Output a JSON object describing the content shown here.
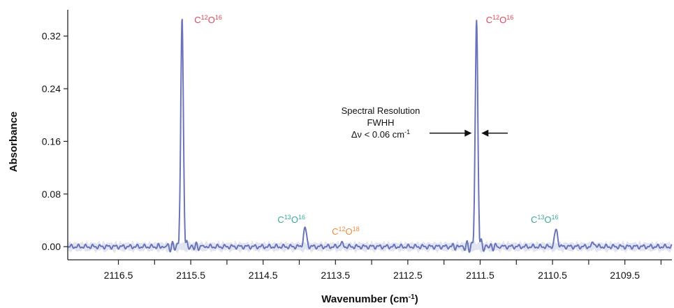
{
  "chart_data": {
    "type": "line",
    "title": "",
    "xlabel": "Wavenumber (cm",
    "xlabel_sup": "-1",
    "xlabel_close": ")",
    "ylabel": "Absorbance",
    "x_reversed": true,
    "xlim": [
      2117.2,
      2108.85
    ],
    "ylim": [
      -0.02,
      0.36
    ],
    "x_ticks": [
      2116.5,
      2115.5,
      2114.5,
      2113.5,
      2112.5,
      2111.5,
      2110.5,
      2109.5
    ],
    "x_tick_labels": [
      "2116.5",
      "2115.5",
      "2114.5",
      "2113.5",
      "2112.5",
      "2111.5",
      "2110.5",
      "2109.5"
    ],
    "y_ticks": [
      0.0,
      0.08,
      0.16,
      0.24,
      0.32
    ],
    "y_tick_labels": [
      "0.00",
      "0.08",
      "0.16",
      "0.24",
      "0.32"
    ],
    "grid": false,
    "line_color": "#6a74b8",
    "baseline": 0.0,
    "peaks": [
      {
        "x": 2115.62,
        "y": 0.345,
        "width": 0.025
      },
      {
        "x": 2113.92,
        "y": 0.028,
        "width": 0.03
      },
      {
        "x": 2113.42,
        "y": 0.005,
        "width": 0.03
      },
      {
        "x": 2111.55,
        "y": 0.345,
        "width": 0.025
      },
      {
        "x": 2110.45,
        "y": 0.026,
        "width": 0.03
      },
      {
        "x": 2109.93,
        "y": 0.006,
        "width": 0.03
      }
    ],
    "annotations": [
      {
        "base": "C",
        "m1": "12",
        "mid": "O",
        "m2": "16",
        "color": "#e0455a",
        "x": 2115.45,
        "y": 0.34
      },
      {
        "base": "C",
        "m1": "13",
        "mid": "O",
        "m2": "16",
        "color": "#3aa89a",
        "x": 2114.3,
        "y": 0.036
      },
      {
        "base": "C",
        "m1": "12",
        "mid": "O",
        "m2": "18",
        "color": "#f08a3c",
        "x": 2113.55,
        "y": 0.018
      },
      {
        "base": "C",
        "m1": "12",
        "mid": "O",
        "m2": "16",
        "color": "#e0455a",
        "x": 2111.42,
        "y": 0.34
      },
      {
        "base": "C",
        "m1": "13",
        "mid": "O",
        "m2": "16",
        "color": "#3aa89a",
        "x": 2110.8,
        "y": 0.036
      }
    ],
    "resolution_note": {
      "line1": "Spectral Resolution",
      "line2": "FWHH",
      "line3_prefix": "Δν < 0.06 cm",
      "line3_sup": "-1"
    }
  }
}
